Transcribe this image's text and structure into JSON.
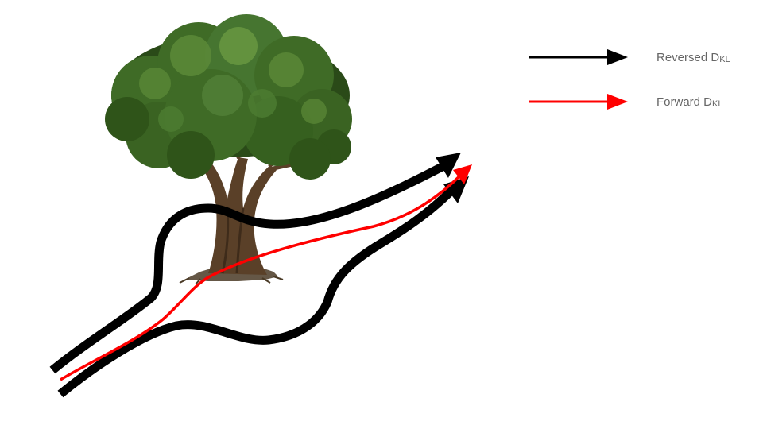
{
  "legend": {
    "items": [
      {
        "label": "Reversed D",
        "subscript": "KL",
        "color": "#000000"
      },
      {
        "label": "Forward D",
        "subscript": "KL",
        "color": "#ff0000"
      }
    ],
    "text_color": "#666666"
  },
  "scene": {
    "tree_icon": "tree-icon",
    "foliage_color": "#3f6b26",
    "foliage_highlight": "#5c8a38",
    "foliage_shadow": "#2a4a18",
    "trunk_color": "#5a4028",
    "trunk_dark": "#3e2b1a",
    "ground_color": "#4a3a26"
  },
  "paths": {
    "reversed_color": "#000000",
    "forward_color": "#ff0000"
  }
}
